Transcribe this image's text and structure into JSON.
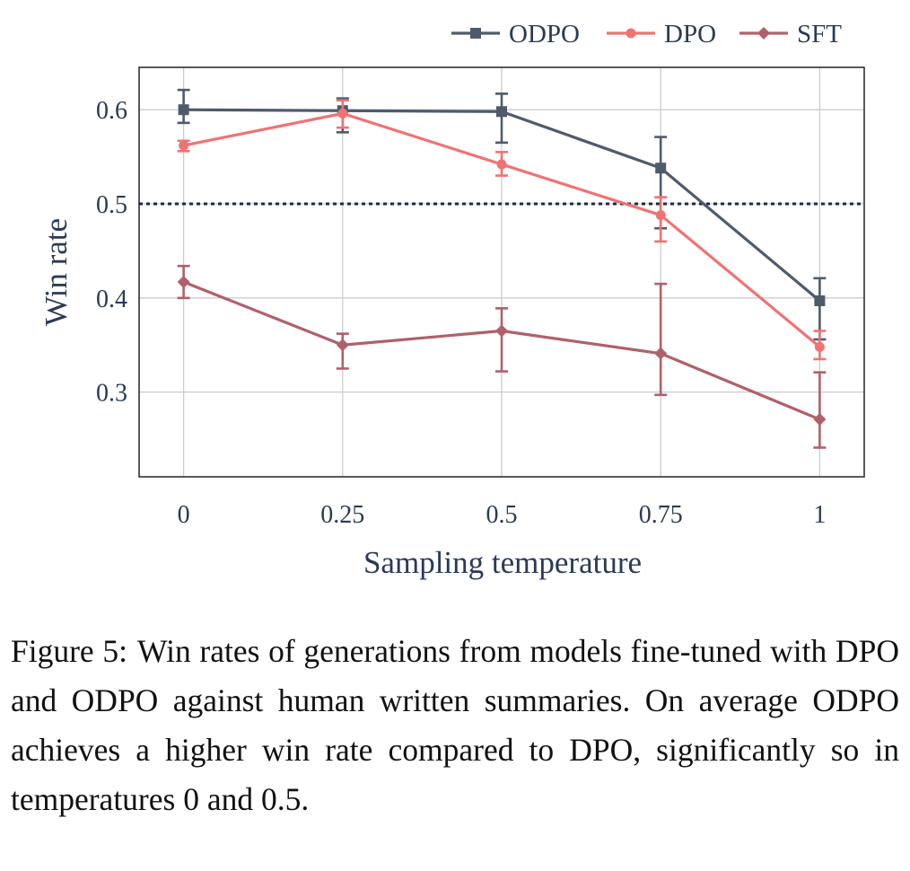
{
  "chart_data": {
    "type": "line",
    "xlabel": "Sampling temperature",
    "ylabel": "Win rate",
    "x": [
      0,
      0.25,
      0.5,
      0.75,
      1
    ],
    "x_tick_labels": [
      "0",
      "0.25",
      "0.5",
      "0.75",
      "1"
    ],
    "yticks": [
      0.3,
      0.4,
      0.5,
      0.6
    ],
    "y_tick_labels": [
      "0.3",
      "0.4",
      "0.5",
      "0.6"
    ],
    "xlim": [
      -0.07,
      1.07
    ],
    "ylim": [
      0.21,
      0.645
    ],
    "grid": true,
    "legend_position": "top-right",
    "reference_line": {
      "y": 0.5,
      "style": "dotted"
    },
    "series": [
      {
        "name": "ODPO",
        "color": "#4f5b6b",
        "marker": "square",
        "values": [
          0.6,
          0.599,
          0.598,
          0.538,
          0.397
        ],
        "err_low": [
          0.586,
          0.576,
          0.565,
          0.474,
          0.356
        ],
        "err_high": [
          0.621,
          0.612,
          0.617,
          0.571,
          0.421
        ]
      },
      {
        "name": "DPO",
        "color": "#f07272",
        "marker": "circle",
        "values": [
          0.562,
          0.596,
          0.542,
          0.488,
          0.348
        ],
        "err_low": [
          0.556,
          0.581,
          0.53,
          0.46,
          0.335
        ],
        "err_high": [
          0.567,
          0.61,
          0.555,
          0.507,
          0.365
        ]
      },
      {
        "name": "SFT",
        "color": "#b0606a",
        "marker": "diamond",
        "values": [
          0.417,
          0.35,
          0.365,
          0.341,
          0.271
        ],
        "err_low": [
          0.4,
          0.325,
          0.322,
          0.297,
          0.241
        ],
        "err_high": [
          0.434,
          0.362,
          0.389,
          0.415,
          0.321
        ]
      }
    ]
  },
  "caption": {
    "label": "Figure 5:",
    "text": "Win rates of generations from models fine-tuned with DPO and ODPO against human written summaries. On average ODPO achieves a higher win rate compared to DPO, significantly so in temperatures 0 and 0.5."
  }
}
